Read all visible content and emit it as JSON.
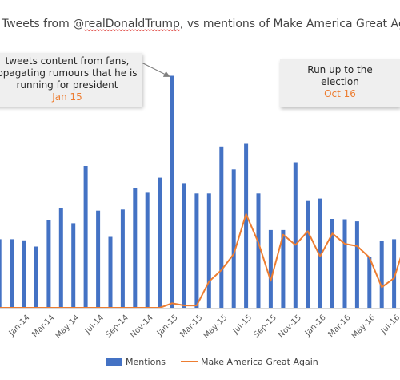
{
  "chart_data": {
    "type": "bar",
    "title": "Tweets from @realDonaldTrump, vs mentions of Make America Great Again &",
    "title_underlined": "realDonaldTrump",
    "categories": [
      "Nov-13",
      "Dec-13",
      "Jan-14",
      "Feb-14",
      "Mar-14",
      "Apr-14",
      "May-14",
      "Jun-14",
      "Jul-14",
      "Aug-14",
      "Sep-14",
      "Oct-14",
      "Nov-14",
      "Dec-14",
      "Jan-15",
      "Feb-15",
      "Mar-15",
      "Apr-15",
      "May-15",
      "Jun-15",
      "Jul-15",
      "Aug-15",
      "Sep-15",
      "Oct-15",
      "Nov-15",
      "Dec-15",
      "Jan-16",
      "Feb-16",
      "Mar-16",
      "Apr-16",
      "May-16",
      "Jun-16",
      "Jul-16",
      "Aug-16"
    ],
    "tick_labels": [
      "Jan-14",
      "Mar-14",
      "May-14",
      "Jul-14",
      "Sep-14",
      "Nov-14",
      "Jan-15",
      "Mar-15",
      "May-15",
      "Jul-15",
      "Sep-15",
      "Nov-15",
      "Jan-16",
      "Mar-16",
      "May-16",
      "Jul-16"
    ],
    "series": [
      {
        "name": "Mentions",
        "type": "bar",
        "color": "#4472c4",
        "values": [
          300,
          300,
          295,
          268,
          385,
          437,
          370,
          620,
          425,
          310,
          430,
          525,
          503,
          569,
          1014,
          545,
          500,
          500,
          705,
          605,
          720,
          500,
          340,
          340,
          636,
          467,
          478,
          389,
          387,
          378,
          221,
          291,
          300,
          300
        ]
      },
      {
        "name": "Make America Great Again",
        "type": "line",
        "color": "#ed7d31",
        "values": [
          0,
          0,
          0,
          0,
          0,
          0,
          0,
          0,
          0,
          0,
          0,
          0,
          0,
          0,
          20,
          10,
          10,
          115,
          165,
          235,
          410,
          285,
          118,
          320,
          275,
          335,
          225,
          325,
          280,
          270,
          220,
          90,
          130,
          300
        ]
      }
    ],
    "ylim": [
      0,
      1100
    ],
    "grid": false,
    "legend": "bottom",
    "annotations": [
      {
        "lines": [
          "tweets content from fans,",
          "opagating rumours that he is",
          "running for president"
        ],
        "date": "Jan 15",
        "points_to": "Jan-15"
      },
      {
        "lines": [
          "Run up to the",
          "election"
        ],
        "date": "Oct 16",
        "points_to": "Aug-16"
      }
    ]
  }
}
